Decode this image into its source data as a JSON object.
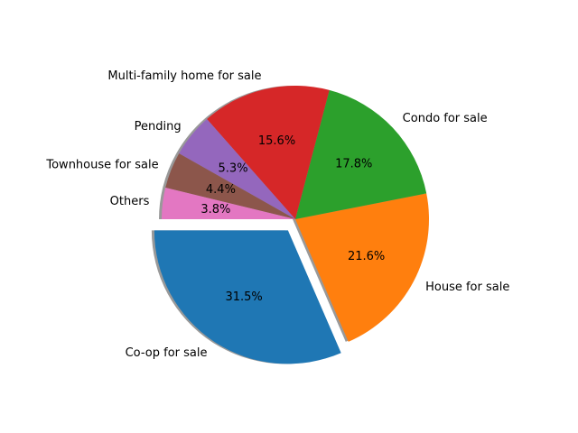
{
  "chart_data": {
    "type": "pie",
    "title": "",
    "slices": [
      {
        "label": "Co-op for sale",
        "value": 31.5,
        "pct_label": "31.5%",
        "color": "#1f77b4",
        "exploded": true
      },
      {
        "label": "House for sale",
        "value": 21.6,
        "pct_label": "21.6%",
        "color": "#ff7f0e",
        "exploded": false
      },
      {
        "label": "Condo for sale",
        "value": 17.8,
        "pct_label": "17.8%",
        "color": "#2ca02c",
        "exploded": false
      },
      {
        "label": "Multi-family home for sale",
        "value": 15.6,
        "pct_label": "15.6%",
        "color": "#d62728",
        "exploded": false
      },
      {
        "label": "Pending",
        "value": 5.3,
        "pct_label": "5.3%",
        "color": "#9467bd",
        "exploded": false
      },
      {
        "label": "Townhouse for sale",
        "value": 4.4,
        "pct_label": "4.4%",
        "color": "#8c564b",
        "exploded": false
      },
      {
        "label": "Others",
        "value": 3.8,
        "pct_label": "3.8%",
        "color": "#e377c2",
        "exploded": false
      }
    ],
    "start_angle_deg": 180,
    "direction": "counterclockwise",
    "shadow": true,
    "legend": "none"
  }
}
